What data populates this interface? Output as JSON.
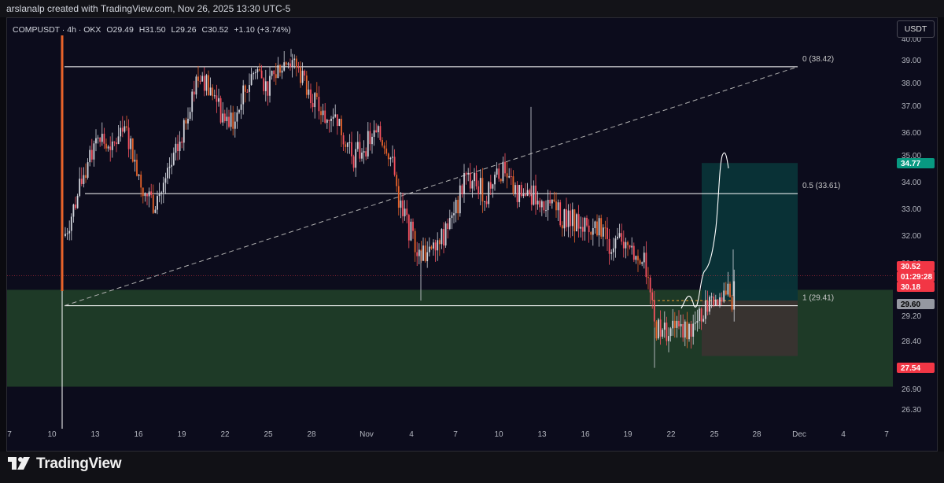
{
  "header": {
    "credit": "arslanalp created with TradingView.com, Nov 26, 2025 13:30 UTC-5"
  },
  "symbol": {
    "name": "COMPUSDT · 4h · OKX",
    "open": "O29.49",
    "high": "H31.50",
    "low": "L29.26",
    "close": "C30.52",
    "change": "+1.10 (+3.74%)"
  },
  "currency_button": "USDT",
  "footer": {
    "brand": "TradingView"
  },
  "chart_data": {
    "type": "candlestick",
    "symbol": "COMPUSDT",
    "timeframe": "4h",
    "exchange": "OKX",
    "y_axis": {
      "labels": [
        "26.30",
        "26.90",
        "27.60",
        "28.40",
        "29.20",
        "30.00",
        "30.80",
        "31.20",
        "32.00",
        "33.00",
        "34.00",
        "35.00",
        "36.00",
        "37.00",
        "38.00",
        "39.00",
        "40.00"
      ],
      "range": [
        26.0,
        40.0
      ]
    },
    "x_axis": {
      "labels": [
        "7",
        "10",
        "13",
        "16",
        "19",
        "22",
        "25",
        "28",
        "Nov",
        "4",
        "7",
        "10",
        "13",
        "16",
        "19",
        "22",
        "25",
        "28",
        "Dec",
        "4",
        "7"
      ]
    },
    "price_tags": [
      {
        "label": "34.77",
        "bg": "#089981",
        "fg": "#ffffff"
      },
      {
        "label": "30.52",
        "bg": "#f23645",
        "fg": "#ffffff"
      },
      {
        "label": "01:29:28",
        "bg": "#f23645",
        "fg": "#ffffff"
      },
      {
        "label": "30.18",
        "bg": "#f23645",
        "fg": "#ffffff"
      },
      {
        "label": "29.60",
        "bg": "#9598a1",
        "fg": "#000000"
      },
      {
        "label": "27.54",
        "bg": "#f23645",
        "fg": "#ffffff"
      }
    ],
    "fib_levels": [
      {
        "label": "0 (38.42)",
        "price": 38.42
      },
      {
        "label": "0.5 (33.61)",
        "price": 33.61
      },
      {
        "label": "1 (29.41)",
        "price": 29.41
      }
    ],
    "demand_zone": {
      "from": 26.4,
      "to": 30.0,
      "color": "#1e3a27"
    },
    "position": {
      "entry": 29.6,
      "target": 34.77,
      "stop": 27.54,
      "profit_color": "#0a3438",
      "loss_color": "#3a3330"
    },
    "current_price": 30.52,
    "colors": {
      "up": "#d1d4dc",
      "down": "#f7525f",
      "accent_down": "#e8632a",
      "line": "#ffffff"
    }
  }
}
